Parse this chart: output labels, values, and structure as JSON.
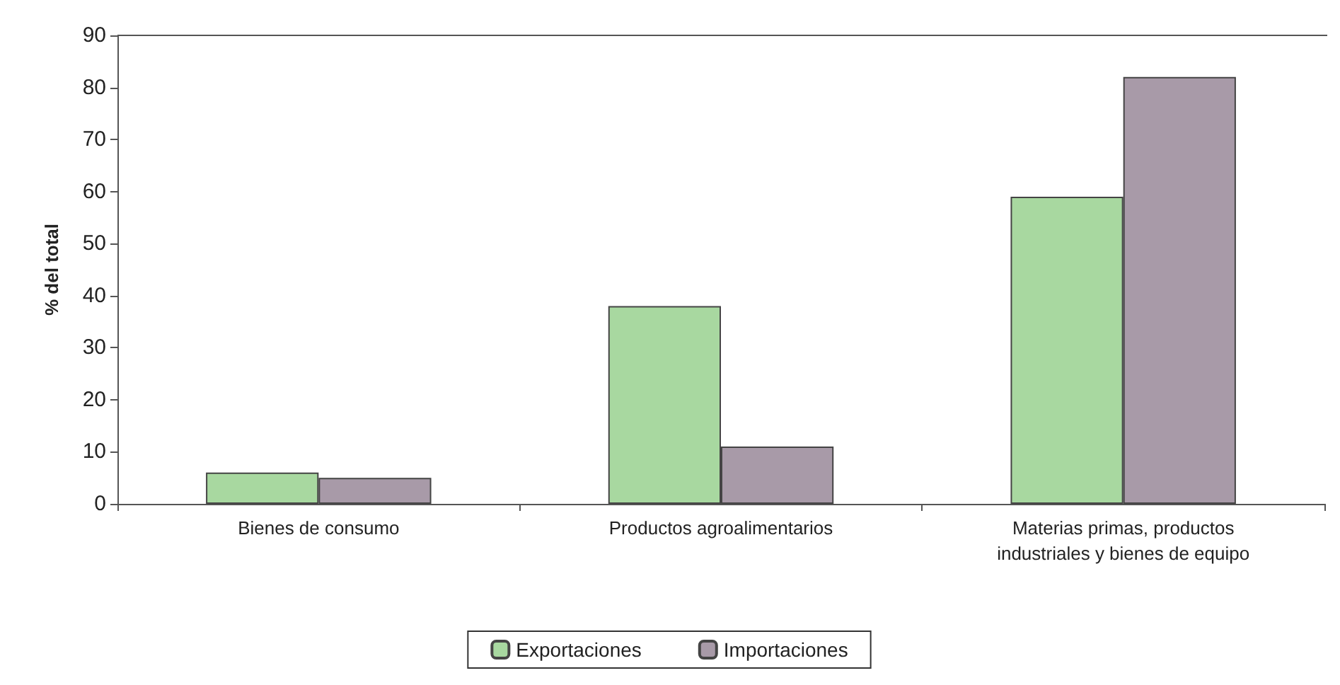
{
  "chart_data": {
    "type": "bar",
    "ylabel": "% del total",
    "categories": [
      "Bienes de consumo",
      "Productos agroalimentarios",
      "Materias primas, productos\nindustriales y bienes de equipo"
    ],
    "series": [
      {
        "name": "Exportaciones",
        "color": "#a8d8a0",
        "values": [
          6,
          38,
          59
        ]
      },
      {
        "name": "Importaciones",
        "color": "#a89aa8",
        "values": [
          5,
          11,
          82
        ]
      }
    ],
    "ylim": [
      0,
      90
    ],
    "yticks": [
      0,
      10,
      20,
      30,
      40,
      50,
      60,
      70,
      80,
      90
    ],
    "grid": false,
    "legend": "bottom"
  }
}
